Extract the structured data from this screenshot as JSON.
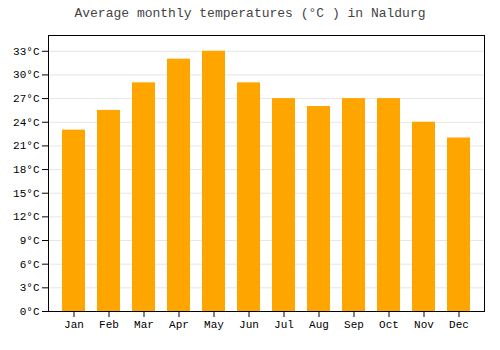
{
  "chart_data": {
    "type": "bar",
    "title": "Average monthly temperatures (°C ) in Naldurg",
    "categories": [
      "Jan",
      "Feb",
      "Mar",
      "Apr",
      "May",
      "Jun",
      "Jul",
      "Aug",
      "Sep",
      "Oct",
      "Nov",
      "Dec"
    ],
    "values": [
      23.0,
      25.5,
      29.0,
      32.0,
      33.0,
      29.0,
      27.0,
      26.0,
      27.0,
      27.0,
      24.0,
      22.0
    ],
    "color": "#FFA500",
    "ylim": [
      0,
      35
    ],
    "yticks": [
      {
        "value": 0,
        "label": "0°C"
      },
      {
        "value": 3,
        "label": "3°C"
      },
      {
        "value": 6,
        "label": "6°C"
      },
      {
        "value": 9,
        "label": "9°C"
      },
      {
        "value": 12,
        "label": "12°C"
      },
      {
        "value": 15,
        "label": "15°C"
      },
      {
        "value": 18,
        "label": "18°C"
      },
      {
        "value": 21,
        "label": "21°C"
      },
      {
        "value": 24,
        "label": "24°C"
      },
      {
        "value": 27,
        "label": "27°C"
      },
      {
        "value": 30,
        "label": "30°C"
      },
      {
        "value": 33,
        "label": "33°C"
      }
    ],
    "grid": true
  }
}
